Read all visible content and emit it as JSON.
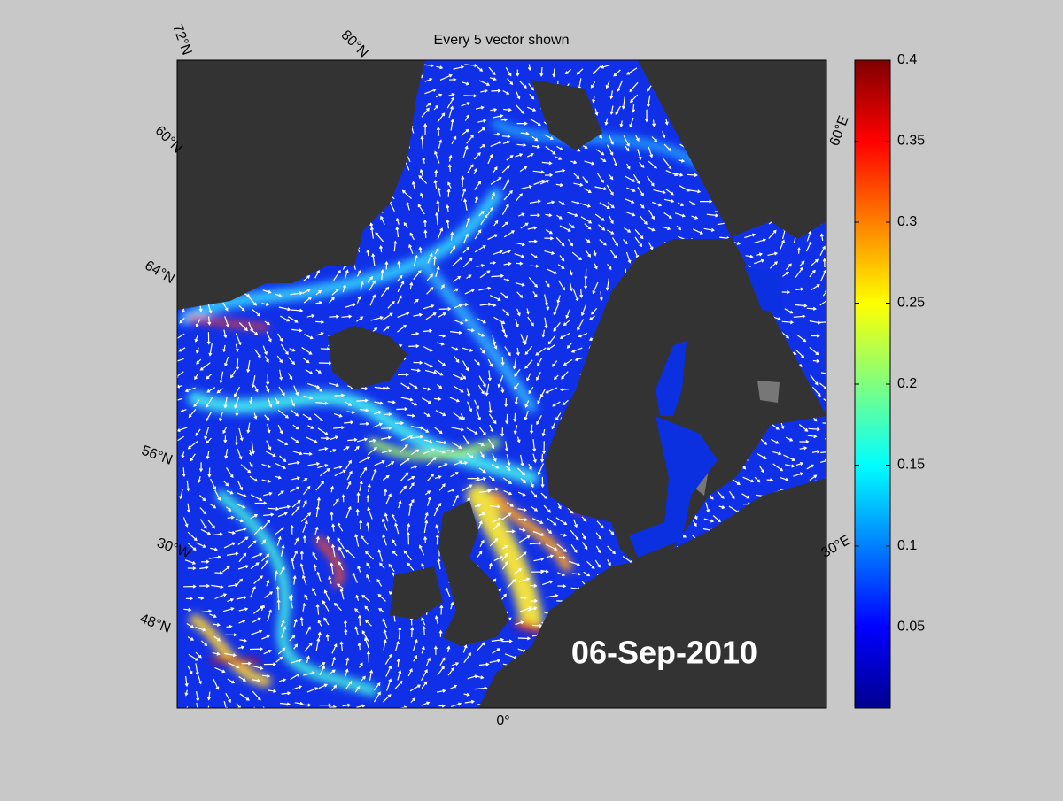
{
  "title": "Every 5 vector shown",
  "date": "06-Sep-2010",
  "map_labels": {
    "lat_72": "72°N",
    "lat_80": "80°N",
    "lat_60": "60°N",
    "lat_64": "64°N",
    "lat_56": "56°N",
    "lon_30w": "30°W",
    "lat_48": "48°N",
    "lon_0": "0°",
    "lon_30e": "30°E",
    "lon_60e": "60°E"
  },
  "colorbar": {
    "lim": [
      0,
      0.4
    ],
    "ticks": [
      0.05,
      0.1,
      0.15,
      0.2,
      0.25,
      0.3,
      0.35,
      0.4
    ]
  }
}
